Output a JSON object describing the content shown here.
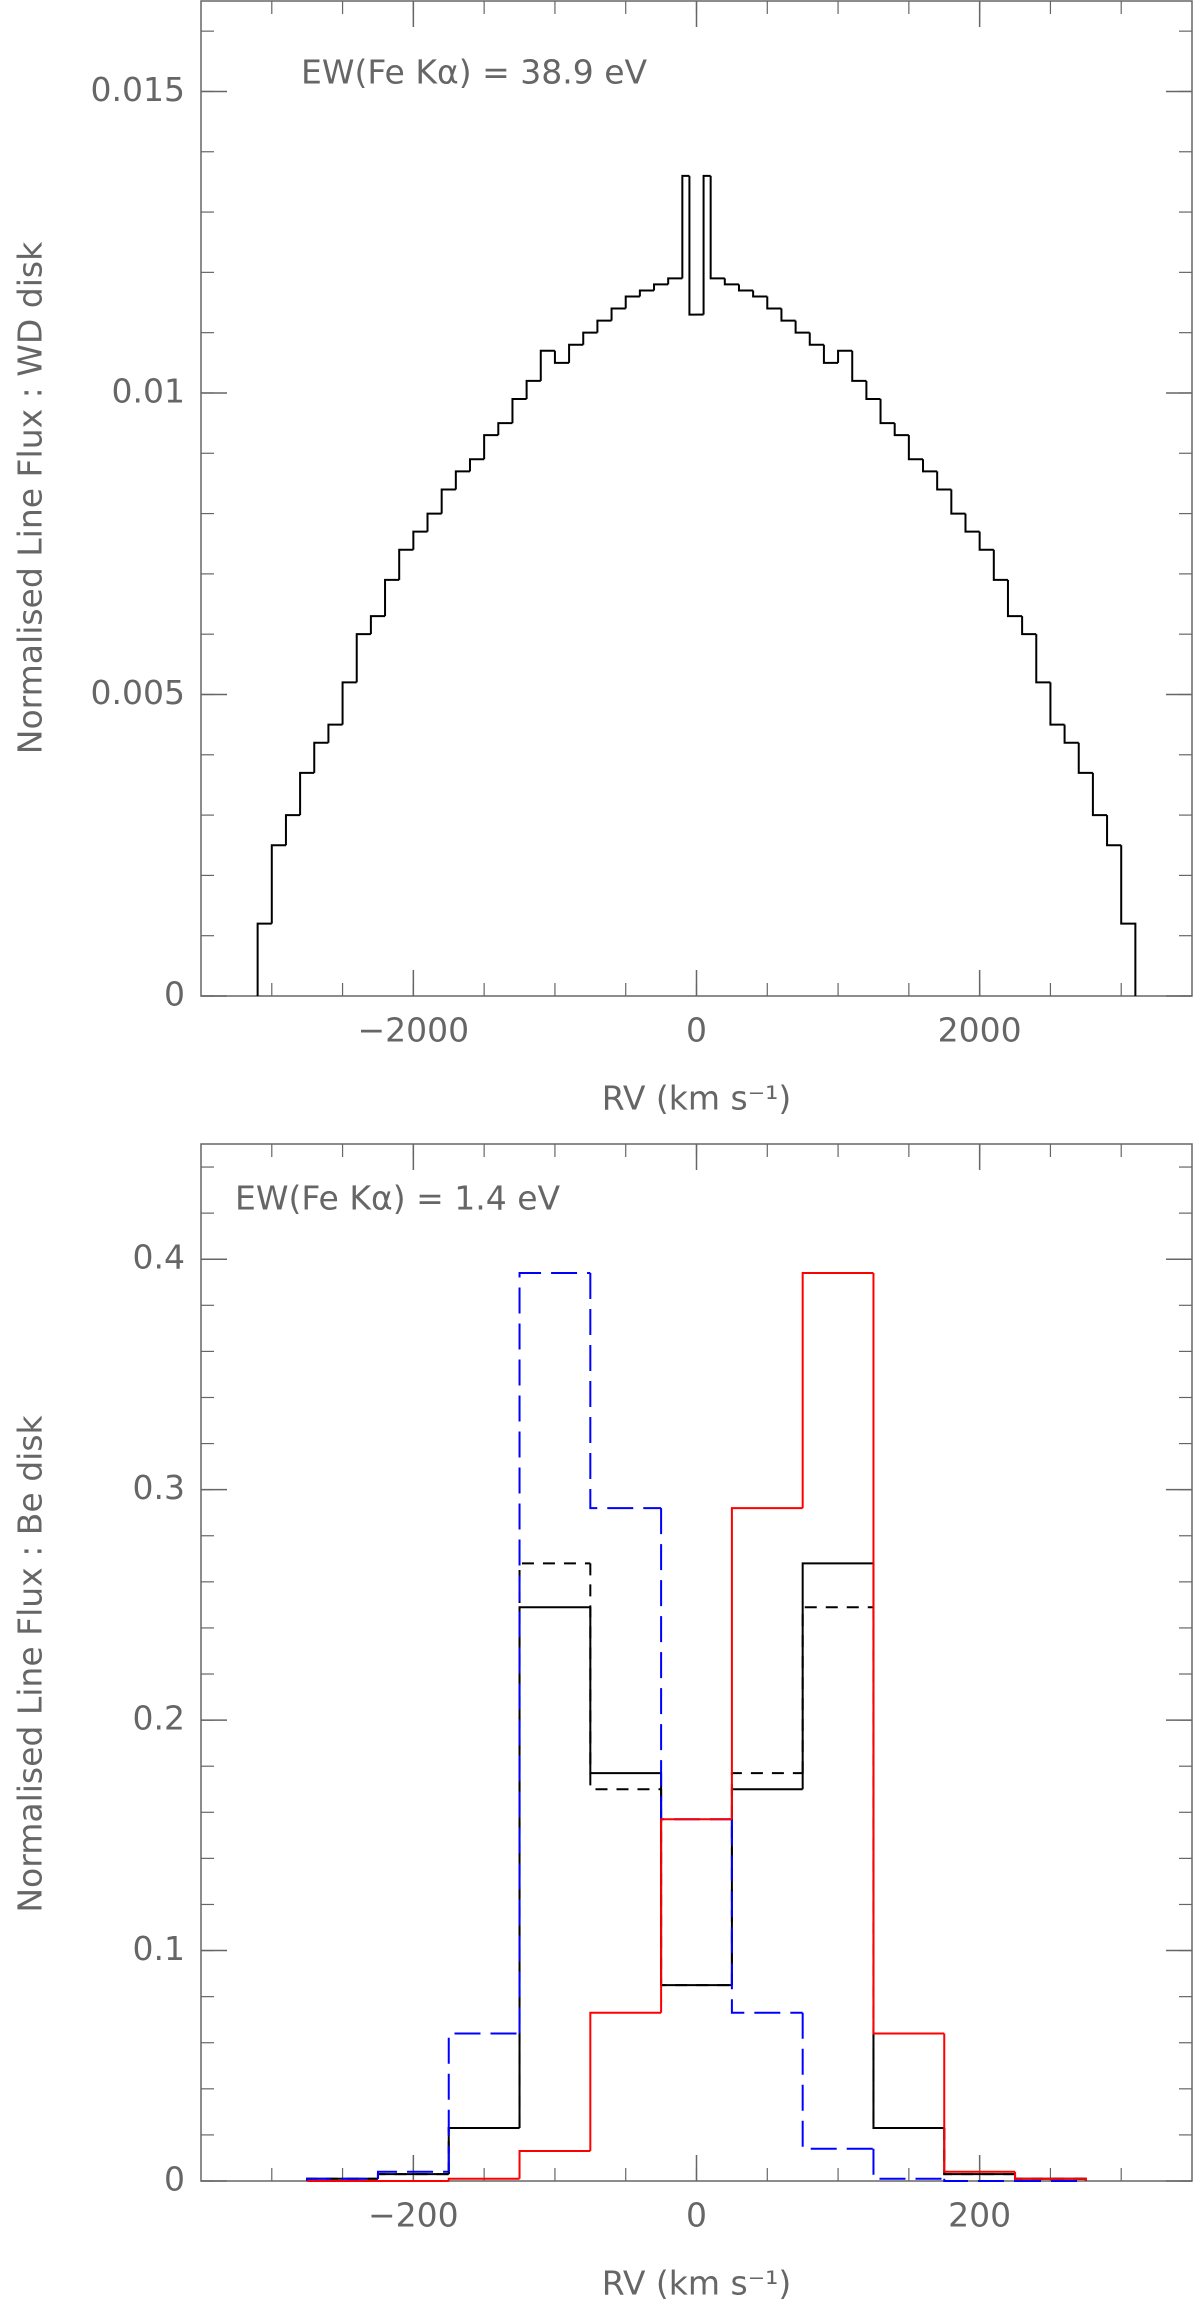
{
  "chart_data": [
    {
      "type": "histogram",
      "annotation": "EW(Fe Kα) = 38.9 eV",
      "xlabel": "RV (km s⁻¹)",
      "ylabel": "Normalised Line Flux : WD disk",
      "xlim": [
        -3500,
        3500
      ],
      "ylim": [
        0,
        0.0165
      ],
      "xticks": [
        {
          "value": -2000,
          "label": "−2000"
        },
        0,
        2000
      ],
      "yticks": [
        0,
        0.005,
        0.01,
        0.015
      ],
      "xminorticks": [
        -3000,
        -2500,
        -2000,
        -1500,
        -1000,
        -500,
        0,
        500,
        1000,
        1500,
        2000,
        2500,
        3000
      ],
      "yminorticks": [
        0,
        0.001,
        0.002,
        0.003,
        0.004,
        0.005,
        0.006,
        0.007,
        0.008,
        0.009,
        0.01,
        0.011,
        0.012,
        0.013,
        0.014,
        0.015,
        0.016
      ],
      "series": [
        {
          "color": "#000000",
          "linestyle": "solid",
          "bins": [
            -3100,
            -3000,
            -2900,
            -2800,
            -2700,
            -2600,
            -2500,
            -2400,
            -2300,
            -2200,
            -2100,
            -2000,
            -1900,
            -1800,
            -1700,
            -1600,
            -1500,
            -1400,
            -1300,
            -1200,
            -1100,
            -1000,
            -900,
            -800,
            -700,
            -600,
            -500,
            -400,
            -300,
            -200,
            -100,
            -50,
            0,
            50,
            100,
            200,
            300,
            400,
            500,
            600,
            700,
            800,
            900,
            1000,
            1100,
            1200,
            1300,
            1400,
            1500,
            1600,
            1700,
            1800,
            1900,
            2000,
            2100,
            2200,
            2300,
            2400,
            2500,
            2600,
            2700,
            2800,
            2900,
            3000,
            3100
          ],
          "counts": [
            0.0012,
            0.0025,
            0.003,
            0.0037,
            0.0042,
            0.0045,
            0.0052,
            0.006,
            0.0063,
            0.0069,
            0.0074,
            0.0077,
            0.008,
            0.0084,
            0.0087,
            0.0089,
            0.0093,
            0.0095,
            0.0099,
            0.0102,
            0.0107,
            0.0105,
            0.0108,
            0.011,
            0.0112,
            0.0114,
            0.0116,
            0.0117,
            0.0118,
            0.0119,
            0.0136,
            0.0113,
            0.0113,
            0.0136,
            0.0119,
            0.0118,
            0.0117,
            0.0116,
            0.0114,
            0.0112,
            0.011,
            0.0108,
            0.0105,
            0.0107,
            0.0102,
            0.0099,
            0.0095,
            0.0093,
            0.0089,
            0.0087,
            0.0084,
            0.008,
            0.0077,
            0.0074,
            0.0069,
            0.0063,
            0.006,
            0.0052,
            0.0045,
            0.0042,
            0.0037,
            0.003,
            0.0025,
            0.0012
          ]
        }
      ]
    },
    {
      "type": "histogram",
      "annotation": "EW(Fe Kα) = 1.4 eV",
      "xlabel": "RV (km s⁻¹)",
      "ylabel": "Normalised Line Flux : Be disk",
      "xlim": [
        -350,
        350
      ],
      "ylim": [
        0,
        0.45
      ],
      "xticks": [
        {
          "value": -200,
          "label": "−200"
        },
        0,
        200
      ],
      "yticks": [
        0,
        0.1,
        0.2,
        0.3,
        0.4
      ],
      "xminorticks": [
        -300,
        -250,
        -200,
        -150,
        -100,
        -50,
        0,
        50,
        100,
        150,
        200,
        250,
        300
      ],
      "yminorticks": [
        0,
        0.02,
        0.04,
        0.06,
        0.08,
        0.1,
        0.12,
        0.14,
        0.16,
        0.18,
        0.2,
        0.22,
        0.24,
        0.26,
        0.28,
        0.3,
        0.32,
        0.34,
        0.36,
        0.38,
        0.4,
        0.42,
        0.44
      ],
      "series": [
        {
          "color": "#000000",
          "linestyle": "solid",
          "bins": [
            -275,
            -225,
            -175,
            -125,
            -75,
            -25,
            25,
            75,
            125,
            175,
            225,
            275
          ],
          "counts": [
            0.001,
            0.003,
            0.023,
            0.249,
            0.177,
            0.085,
            0.17,
            0.268,
            0.023,
            0.003,
            0.001
          ]
        },
        {
          "color": "#000000",
          "linestyle": "dashed",
          "bins": [
            -275,
            -225,
            -175,
            -125,
            -75,
            -25,
            25,
            75,
            125,
            175,
            225,
            275
          ],
          "counts": [
            0.001,
            0.003,
            0.023,
            0.268,
            0.17,
            0.085,
            0.177,
            0.249,
            0.023,
            0.003,
            0.001
          ]
        },
        {
          "color": "#0000ff",
          "linestyle": "longdash",
          "bins": [
            -275,
            -225,
            -175,
            -125,
            -75,
            -25,
            25,
            75,
            125,
            175,
            225,
            275
          ],
          "counts": [
            0.001,
            0.004,
            0.064,
            0.394,
            0.292,
            0.157,
            0.073,
            0.014,
            0.001,
            0,
            0
          ]
        },
        {
          "color": "#ff0000",
          "linestyle": "solid",
          "bins": [
            -275,
            -225,
            -175,
            -125,
            -75,
            -25,
            25,
            75,
            125,
            175,
            225,
            275
          ],
          "counts": [
            0,
            0,
            0.001,
            0.013,
            0.073,
            0.157,
            0.292,
            0.394,
            0.064,
            0.004,
            0.001
          ]
        }
      ]
    }
  ]
}
